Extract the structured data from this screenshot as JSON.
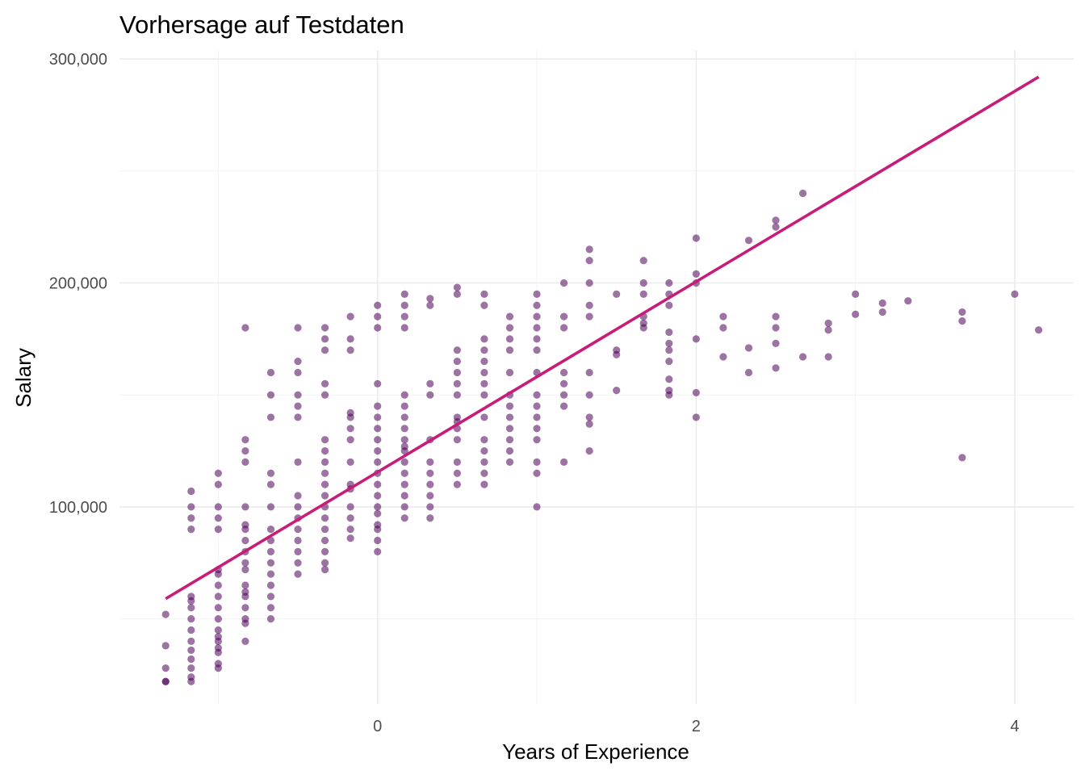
{
  "chart_data": {
    "type": "scatter",
    "title": "Vorhersage auf Testdaten",
    "xlabel": "Years of Experience",
    "ylabel": "Salary",
    "xlim": [
      -1.62,
      4.37
    ],
    "ylim": [
      12000,
      304000
    ],
    "x_ticks": [
      0,
      2,
      4
    ],
    "x_tick_labels": [
      "0",
      "2",
      "4"
    ],
    "x_minor_ticks": [
      -1,
      1,
      3
    ],
    "y_ticks": [
      100000,
      200000,
      300000
    ],
    "y_tick_labels": [
      "100,000",
      "200,000",
      "300,000"
    ],
    "y_minor_ticks": [
      50000,
      150000,
      250000
    ],
    "grid": true,
    "legend": "none",
    "point_color": "#4b0055",
    "point_opacity": 0.55,
    "line_color": "#c71c78",
    "fit_line": {
      "x": [
        -1.33,
        4.15
      ],
      "y": [
        59000,
        292000
      ]
    },
    "points": [
      [
        -1.33,
        52000
      ],
      [
        -1.33,
        38000
      ],
      [
        -1.33,
        28000
      ],
      [
        -1.33,
        22000
      ],
      [
        -1.33,
        22000
      ],
      [
        -1.17,
        107000
      ],
      [
        -1.17,
        100000
      ],
      [
        -1.17,
        95000
      ],
      [
        -1.17,
        90000
      ],
      [
        -1.17,
        60000
      ],
      [
        -1.17,
        58000
      ],
      [
        -1.17,
        55000
      ],
      [
        -1.17,
        50000
      ],
      [
        -1.17,
        45000
      ],
      [
        -1.17,
        40000
      ],
      [
        -1.17,
        36000
      ],
      [
        -1.17,
        32000
      ],
      [
        -1.17,
        28000
      ],
      [
        -1.17,
        24000
      ],
      [
        -1.17,
        22000
      ],
      [
        -1.0,
        115000
      ],
      [
        -1.0,
        110000
      ],
      [
        -1.0,
        100000
      ],
      [
        -1.0,
        95000
      ],
      [
        -1.0,
        90000
      ],
      [
        -1.0,
        72000
      ],
      [
        -1.0,
        70000
      ],
      [
        -1.0,
        65000
      ],
      [
        -1.0,
        60000
      ],
      [
        -1.0,
        55000
      ],
      [
        -1.0,
        50000
      ],
      [
        -1.0,
        45000
      ],
      [
        -1.0,
        42000
      ],
      [
        -1.0,
        40000
      ],
      [
        -1.0,
        37000
      ],
      [
        -1.0,
        35000
      ],
      [
        -1.0,
        30000
      ],
      [
        -1.0,
        28000
      ],
      [
        -0.83,
        180000
      ],
      [
        -0.83,
        130000
      ],
      [
        -0.83,
        125000
      ],
      [
        -0.83,
        120000
      ],
      [
        -0.83,
        100000
      ],
      [
        -0.83,
        92000
      ],
      [
        -0.83,
        90000
      ],
      [
        -0.83,
        85000
      ],
      [
        -0.83,
        80000
      ],
      [
        -0.83,
        75000
      ],
      [
        -0.83,
        72000
      ],
      [
        -0.83,
        65000
      ],
      [
        -0.83,
        62000
      ],
      [
        -0.83,
        60000
      ],
      [
        -0.83,
        55000
      ],
      [
        -0.83,
        50000
      ],
      [
        -0.83,
        48000
      ],
      [
        -0.83,
        40000
      ],
      [
        -0.67,
        160000
      ],
      [
        -0.67,
        150000
      ],
      [
        -0.67,
        140000
      ],
      [
        -0.67,
        115000
      ],
      [
        -0.67,
        110000
      ],
      [
        -0.67,
        100000
      ],
      [
        -0.67,
        90000
      ],
      [
        -0.67,
        85000
      ],
      [
        -0.67,
        80000
      ],
      [
        -0.67,
        75000
      ],
      [
        -0.67,
        70000
      ],
      [
        -0.67,
        65000
      ],
      [
        -0.67,
        60000
      ],
      [
        -0.67,
        55000
      ],
      [
        -0.67,
        50000
      ],
      [
        -0.5,
        180000
      ],
      [
        -0.5,
        165000
      ],
      [
        -0.5,
        160000
      ],
      [
        -0.5,
        150000
      ],
      [
        -0.5,
        145000
      ],
      [
        -0.5,
        140000
      ],
      [
        -0.5,
        120000
      ],
      [
        -0.5,
        105000
      ],
      [
        -0.5,
        100000
      ],
      [
        -0.5,
        95000
      ],
      [
        -0.5,
        90000
      ],
      [
        -0.5,
        85000
      ],
      [
        -0.5,
        80000
      ],
      [
        -0.5,
        75000
      ],
      [
        -0.5,
        70000
      ],
      [
        -0.33,
        180000
      ],
      [
        -0.33,
        175000
      ],
      [
        -0.33,
        170000
      ],
      [
        -0.33,
        155000
      ],
      [
        -0.33,
        150000
      ],
      [
        -0.33,
        130000
      ],
      [
        -0.33,
        125000
      ],
      [
        -0.33,
        120000
      ],
      [
        -0.33,
        115000
      ],
      [
        -0.33,
        110000
      ],
      [
        -0.33,
        105000
      ],
      [
        -0.33,
        100000
      ],
      [
        -0.33,
        95000
      ],
      [
        -0.33,
        90000
      ],
      [
        -0.33,
        85000
      ],
      [
        -0.33,
        80000
      ],
      [
        -0.33,
        75000
      ],
      [
        -0.33,
        72000
      ],
      [
        -0.17,
        185000
      ],
      [
        -0.17,
        175000
      ],
      [
        -0.17,
        170000
      ],
      [
        -0.17,
        142000
      ],
      [
        -0.17,
        140000
      ],
      [
        -0.17,
        135000
      ],
      [
        -0.17,
        130000
      ],
      [
        -0.17,
        120000
      ],
      [
        -0.17,
        110000
      ],
      [
        -0.17,
        108000
      ],
      [
        -0.17,
        100000
      ],
      [
        -0.17,
        95000
      ],
      [
        -0.17,
        90000
      ],
      [
        -0.17,
        86000
      ],
      [
        0.0,
        190000
      ],
      [
        0.0,
        185000
      ],
      [
        0.0,
        180000
      ],
      [
        0.0,
        155000
      ],
      [
        0.0,
        145000
      ],
      [
        0.0,
        140000
      ],
      [
        0.0,
        135000
      ],
      [
        0.0,
        130000
      ],
      [
        0.0,
        125000
      ],
      [
        0.0,
        120000
      ],
      [
        0.0,
        115000
      ],
      [
        0.0,
        110000
      ],
      [
        0.0,
        105000
      ],
      [
        0.0,
        100000
      ],
      [
        0.0,
        97000
      ],
      [
        0.0,
        92000
      ],
      [
        0.0,
        90000
      ],
      [
        0.0,
        85000
      ],
      [
        0.0,
        80000
      ],
      [
        0.17,
        195000
      ],
      [
        0.17,
        190000
      ],
      [
        0.17,
        185000
      ],
      [
        0.17,
        180000
      ],
      [
        0.17,
        150000
      ],
      [
        0.17,
        145000
      ],
      [
        0.17,
        140000
      ],
      [
        0.17,
        135000
      ],
      [
        0.17,
        130000
      ],
      [
        0.17,
        127000
      ],
      [
        0.17,
        125000
      ],
      [
        0.17,
        120000
      ],
      [
        0.17,
        115000
      ],
      [
        0.17,
        110000
      ],
      [
        0.17,
        105000
      ],
      [
        0.17,
        100000
      ],
      [
        0.17,
        95000
      ],
      [
        0.33,
        193000
      ],
      [
        0.33,
        190000
      ],
      [
        0.33,
        155000
      ],
      [
        0.33,
        150000
      ],
      [
        0.33,
        130000
      ],
      [
        0.33,
        120000
      ],
      [
        0.33,
        115000
      ],
      [
        0.33,
        110000
      ],
      [
        0.33,
        105000
      ],
      [
        0.33,
        100000
      ],
      [
        0.33,
        95000
      ],
      [
        0.5,
        198000
      ],
      [
        0.5,
        195000
      ],
      [
        0.5,
        170000
      ],
      [
        0.5,
        165000
      ],
      [
        0.5,
        160000
      ],
      [
        0.5,
        155000
      ],
      [
        0.5,
        150000
      ],
      [
        0.5,
        140000
      ],
      [
        0.5,
        138000
      ],
      [
        0.5,
        135000
      ],
      [
        0.5,
        130000
      ],
      [
        0.5,
        120000
      ],
      [
        0.5,
        115000
      ],
      [
        0.5,
        110000
      ],
      [
        0.67,
        195000
      ],
      [
        0.67,
        190000
      ],
      [
        0.67,
        175000
      ],
      [
        0.67,
        170000
      ],
      [
        0.67,
        165000
      ],
      [
        0.67,
        160000
      ],
      [
        0.67,
        155000
      ],
      [
        0.67,
        150000
      ],
      [
        0.67,
        140000
      ],
      [
        0.67,
        130000
      ],
      [
        0.67,
        125000
      ],
      [
        0.67,
        120000
      ],
      [
        0.67,
        115000
      ],
      [
        0.67,
        110000
      ],
      [
        0.83,
        185000
      ],
      [
        0.83,
        180000
      ],
      [
        0.83,
        175000
      ],
      [
        0.83,
        170000
      ],
      [
        0.83,
        160000
      ],
      [
        0.83,
        150000
      ],
      [
        0.83,
        145000
      ],
      [
        0.83,
        140000
      ],
      [
        0.83,
        135000
      ],
      [
        0.83,
        130000
      ],
      [
        0.83,
        125000
      ],
      [
        0.83,
        120000
      ],
      [
        1.0,
        195000
      ],
      [
        1.0,
        190000
      ],
      [
        1.0,
        185000
      ],
      [
        1.0,
        180000
      ],
      [
        1.0,
        175000
      ],
      [
        1.0,
        170000
      ],
      [
        1.0,
        160000
      ],
      [
        1.0,
        150000
      ],
      [
        1.0,
        145000
      ],
      [
        1.0,
        140000
      ],
      [
        1.0,
        135000
      ],
      [
        1.0,
        130000
      ],
      [
        1.0,
        120000
      ],
      [
        1.0,
        115000
      ],
      [
        1.0,
        100000
      ],
      [
        1.17,
        200000
      ],
      [
        1.17,
        185000
      ],
      [
        1.17,
        180000
      ],
      [
        1.17,
        160000
      ],
      [
        1.17,
        155000
      ],
      [
        1.17,
        150000
      ],
      [
        1.17,
        145000
      ],
      [
        1.17,
        120000
      ],
      [
        1.33,
        215000
      ],
      [
        1.33,
        210000
      ],
      [
        1.33,
        200000
      ],
      [
        1.33,
        190000
      ],
      [
        1.33,
        185000
      ],
      [
        1.33,
        160000
      ],
      [
        1.33,
        150000
      ],
      [
        1.33,
        140000
      ],
      [
        1.33,
        137000
      ],
      [
        1.33,
        125000
      ],
      [
        1.5,
        195000
      ],
      [
        1.5,
        170000
      ],
      [
        1.5,
        168000
      ],
      [
        1.5,
        152000
      ],
      [
        1.67,
        210000
      ],
      [
        1.67,
        200000
      ],
      [
        1.67,
        195000
      ],
      [
        1.67,
        185000
      ],
      [
        1.67,
        182000
      ],
      [
        1.67,
        180000
      ],
      [
        1.83,
        200000
      ],
      [
        1.83,
        195000
      ],
      [
        1.83,
        190000
      ],
      [
        1.83,
        178000
      ],
      [
        1.83,
        173000
      ],
      [
        1.83,
        170000
      ],
      [
        1.83,
        165000
      ],
      [
        1.83,
        157000
      ],
      [
        1.83,
        152000
      ],
      [
        1.83,
        150000
      ],
      [
        2.0,
        220000
      ],
      [
        2.0,
        204000
      ],
      [
        2.0,
        200000
      ],
      [
        2.0,
        175000
      ],
      [
        2.0,
        151000
      ],
      [
        2.0,
        140000
      ],
      [
        2.17,
        185000
      ],
      [
        2.17,
        180000
      ],
      [
        2.17,
        167000
      ],
      [
        2.33,
        219000
      ],
      [
        2.33,
        171000
      ],
      [
        2.33,
        160000
      ],
      [
        2.5,
        228000
      ],
      [
        2.5,
        225000
      ],
      [
        2.5,
        185000
      ],
      [
        2.5,
        180000
      ],
      [
        2.5,
        173000
      ],
      [
        2.5,
        162000
      ],
      [
        2.67,
        240000
      ],
      [
        2.67,
        167000
      ],
      [
        2.83,
        182000
      ],
      [
        2.83,
        179000
      ],
      [
        2.83,
        167000
      ],
      [
        3.0,
        195000
      ],
      [
        3.0,
        186000
      ],
      [
        3.17,
        191000
      ],
      [
        3.17,
        187000
      ],
      [
        3.33,
        192000
      ],
      [
        3.67,
        187000
      ],
      [
        3.67,
        183000
      ],
      [
        3.67,
        122000
      ],
      [
        4.0,
        195000
      ],
      [
        4.15,
        179000
      ]
    ]
  }
}
